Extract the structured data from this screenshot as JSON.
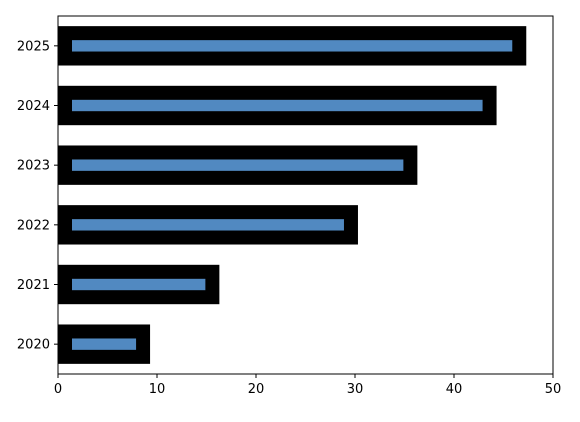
{
  "chart_data": {
    "type": "bar",
    "orientation": "horizontal",
    "categories": [
      "2020",
      "2021",
      "2022",
      "2023",
      "2024",
      "2025"
    ],
    "values": [
      9.3,
      16.3,
      30.3,
      36.3,
      44.3,
      47.3
    ],
    "xlim": [
      0,
      50
    ],
    "xticks": [
      0,
      10,
      20,
      30,
      40,
      50
    ],
    "title": "",
    "xlabel": "",
    "ylabel": "",
    "grid": false,
    "legend": "none",
    "colors": {
      "bar_fill": "#5189c1",
      "bar_edge": "#000000",
      "axis": "#000000",
      "background": "#ffffff"
    }
  }
}
